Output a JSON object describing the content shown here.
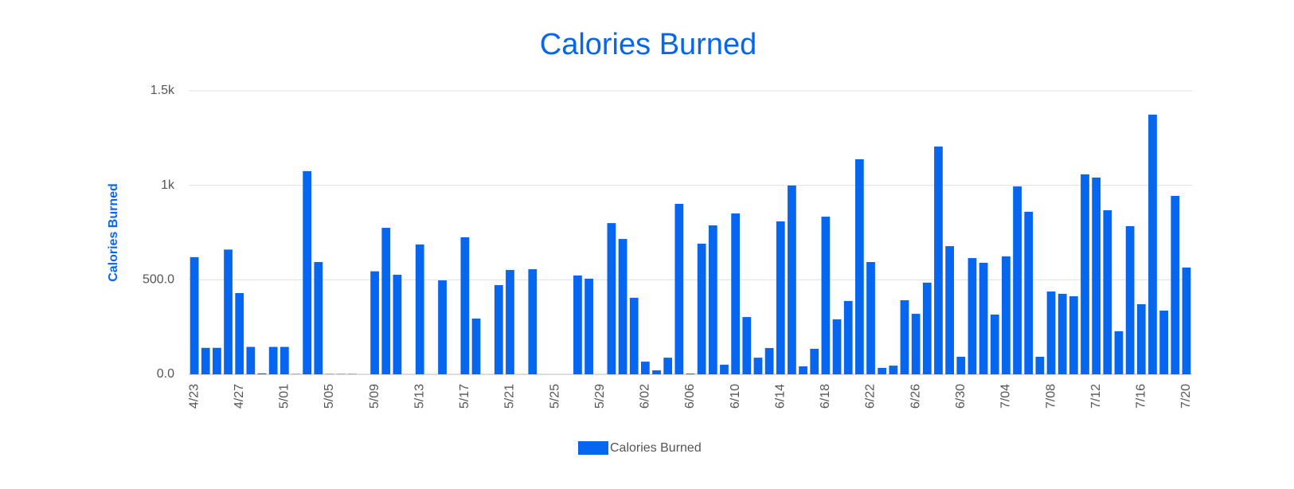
{
  "chart_data": {
    "type": "bar",
    "title": "Calories Burned",
    "y_label": "Calories Burned",
    "legend": "bottom",
    "series": [
      {
        "name": "Calories Burned",
        "color": "#0766f0",
        "values": [
          620,
          140,
          140,
          660,
          430,
          145,
          5,
          145,
          145,
          2,
          1075,
          594,
          2,
          2,
          2,
          0,
          545,
          775,
          527,
          0,
          687,
          0,
          497,
          0,
          725,
          295,
          0,
          472,
          552,
          0,
          556,
          0,
          0,
          0,
          523,
          506,
          0,
          800,
          716,
          405,
          67,
          21,
          88,
          902,
          4,
          691,
          788,
          51,
          851,
          303,
          88,
          139,
          809,
          999,
          42,
          135,
          834,
          291,
          388,
          1138,
          594,
          34,
          46,
          392,
          320,
          485,
          1205,
          678,
          93,
          615,
          590,
          316,
          624,
          994,
          860,
          93,
          438,
          426,
          413,
          1058,
          1041,
          868,
          228,
          784,
          371,
          1374,
          337,
          944,
          565
        ]
      }
    ],
    "categories": [
      "4/23",
      null,
      null,
      null,
      "4/27",
      null,
      null,
      null,
      "5/01",
      null,
      null,
      null,
      "5/05",
      null,
      null,
      null,
      "5/09",
      null,
      null,
      null,
      "5/13",
      null,
      null,
      null,
      "5/17",
      null,
      null,
      null,
      "5/21",
      null,
      null,
      null,
      "5/25",
      null,
      null,
      null,
      "5/29",
      null,
      null,
      null,
      "6/02",
      null,
      null,
      null,
      "6/06",
      null,
      null,
      null,
      "6/10",
      null,
      null,
      null,
      "6/14",
      null,
      null,
      null,
      "6/18",
      null,
      null,
      null,
      "6/22",
      null,
      null,
      null,
      "6/26",
      null,
      null,
      null,
      "6/30",
      null,
      null,
      null,
      "7/04",
      null,
      null,
      null,
      "7/08",
      null,
      null,
      null,
      "7/12",
      null,
      null,
      null,
      "7/16",
      null,
      null,
      null,
      "7/20"
    ],
    "ylim": [
      0,
      1500
    ],
    "yticks": [
      {
        "value": 0,
        "label": "0.0"
      },
      {
        "value": 500,
        "label": "500.0"
      },
      {
        "value": 1000,
        "label": "1k"
      },
      {
        "value": 1500,
        "label": "1.5k"
      }
    ],
    "grid": true
  }
}
